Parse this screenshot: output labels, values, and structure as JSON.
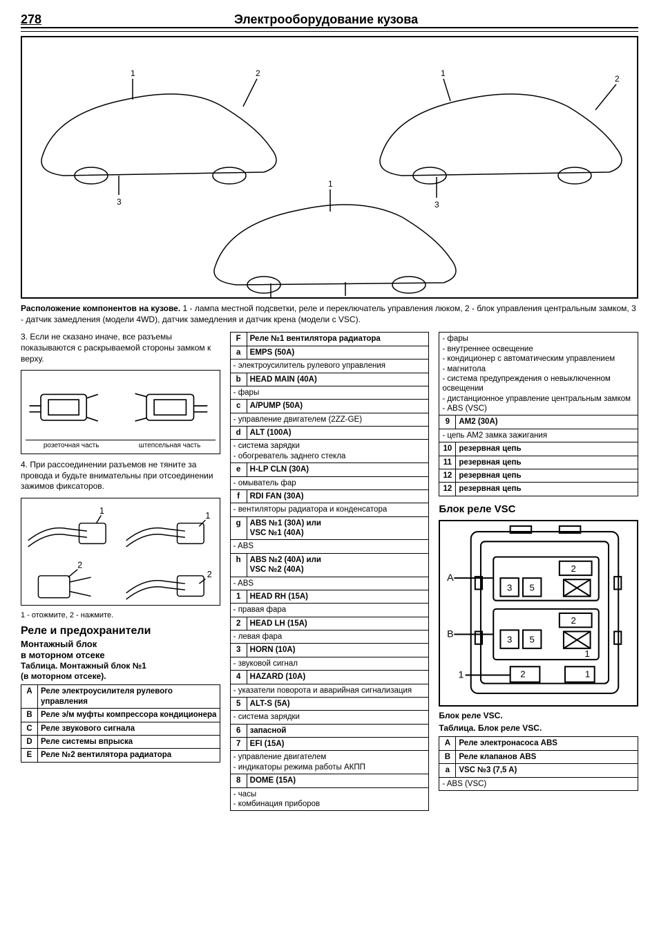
{
  "page_number": "278",
  "page_title": "Электрооборудование кузова",
  "figure_caption_lead": "Расположение компонентов на кузове.",
  "figure_caption_rest": "1 - лампа местной подсветки, реле и переключатель управления люком, 2 - блок управления центральным замком, 3 - датчик замедления (модели 4WD), датчик замедления и датчик крена (модели с VSC).",
  "col1": {
    "p3": "3. Если не сказано иначе, все разъемы показываются с раскрываемой стороны замком к верху.",
    "conn_left": "розеточная часть",
    "conn_right": "штепсельная часть",
    "p4": "4. При рассоединении разъемов не тяните за провода и будьте внимательны при отсоединении зажимов фиксаторов.",
    "press_note": "1 - отожмите, 2 - нажмите.",
    "h1": "Реле и предохранители",
    "h2a": "Монтажный блок",
    "h2b": "в моторном отсеке",
    "tbl_title_a": "Таблица. Монтажный блок №1",
    "tbl_title_b": "(в моторном отсеке).",
    "table1": [
      {
        "k": "A",
        "v": "Реле электроусилителя рулевого управления"
      },
      {
        "k": "B",
        "v": "Реле э/м муфты компрессора кондиционера"
      },
      {
        "k": "C",
        "v": "Реле звукового сигнала"
      },
      {
        "k": "D",
        "v": "Реле системы впрыска"
      },
      {
        "k": "E",
        "v": "Реле №2 вентилятора радиатора"
      }
    ]
  },
  "col2_rows": [
    {
      "type": "kv",
      "k": "F",
      "v": "Реле №1 вентилятора радиатора",
      "bold": true
    },
    {
      "type": "kv",
      "k": "a",
      "v": "EMPS (50A)",
      "bold": true
    },
    {
      "type": "full",
      "v": "- электроусилитель рулевого управления"
    },
    {
      "type": "kv",
      "k": "b",
      "v": "HEAD MAIN (40A)",
      "bold": true
    },
    {
      "type": "full",
      "v": "- фары"
    },
    {
      "type": "kv",
      "k": "c",
      "v": "A/PUMP (50A)",
      "bold": true
    },
    {
      "type": "full",
      "v": "- управление двигателем (2ZZ-GE)"
    },
    {
      "type": "kv",
      "k": "d",
      "v": "ALT (100A)",
      "bold": true
    },
    {
      "type": "full",
      "v": "- система зарядки\n- обогреватель заднего стекла"
    },
    {
      "type": "kv",
      "k": "e",
      "v": "H-LP CLN (30A)",
      "bold": true
    },
    {
      "type": "full",
      "v": "- омыватель фар"
    },
    {
      "type": "kv",
      "k": "f",
      "v": "RDI FAN (30A)",
      "bold": true
    },
    {
      "type": "full",
      "v": "- вентиляторы радиатора и конденсатора"
    },
    {
      "type": "kv",
      "k": "g",
      "v": "ABS №1      (30A) или\nVSC №1      (40A)",
      "bold": true
    },
    {
      "type": "full",
      "v": "- ABS"
    },
    {
      "type": "kv",
      "k": "h",
      "v": "ABS №2      (40A) или\nVSC №2      (40A)",
      "bold": true
    },
    {
      "type": "full",
      "v": "- ABS"
    },
    {
      "type": "kv",
      "k": "1",
      "v": "HEAD RH (15A)",
      "bold": true
    },
    {
      "type": "full",
      "v": "- правая фара"
    },
    {
      "type": "kv",
      "k": "2",
      "v": "HEAD LH (15A)",
      "bold": true
    },
    {
      "type": "full",
      "v": "- левая фара"
    },
    {
      "type": "kv",
      "k": "3",
      "v": "HORN (10A)",
      "bold": true
    },
    {
      "type": "full",
      "v": "- звуковой сигнал"
    },
    {
      "type": "kv",
      "k": "4",
      "v": "HAZARD (10A)",
      "bold": true
    },
    {
      "type": "full",
      "v": "- указатели поворота и аварийная сигнализация"
    },
    {
      "type": "kv",
      "k": "5",
      "v": "ALT-S (5A)",
      "bold": true
    },
    {
      "type": "full",
      "v": "- система зарядки"
    },
    {
      "type": "kv",
      "k": "6",
      "v": "запасной",
      "bold": true
    },
    {
      "type": "kv",
      "k": "7",
      "v": "EFI (15A)",
      "bold": true
    },
    {
      "type": "full",
      "v": "- управление двигателем\n- индикаторы режима работы АКПП"
    },
    {
      "type": "kv",
      "k": "8",
      "v": "DOME (15A)",
      "bold": true
    },
    {
      "type": "full",
      "v": "- часы\n- комбинация приборов"
    }
  ],
  "col3": {
    "top_rows": [
      {
        "type": "full",
        "v": "- фары\n- внутреннее освещение\n- кондиционер с автоматическим управлением\n- магнитола\n- система предупреждения о невыключенном освещении\n- дистанционное управление центральным замком\n- ABS (VSC)"
      },
      {
        "type": "kv",
        "k": "9",
        "v": "AM2 (30A)",
        "bold": true
      },
      {
        "type": "full",
        "v": "- цепь AM2 замка зажигания"
      },
      {
        "type": "kv",
        "k": "10",
        "v": "резервная цепь",
        "bold": true
      },
      {
        "type": "kv",
        "k": "11",
        "v": "резервная цепь",
        "bold": true
      },
      {
        "type": "kv",
        "k": "12",
        "v": "резервная цепь",
        "bold": true
      },
      {
        "type": "kv",
        "k": "12",
        "v": "резервная цепь",
        "bold": true
      }
    ],
    "vsc_heading": "Блок реле VSC",
    "vsc_caption": "Блок реле VSC.",
    "vsc_table_title": "Таблица. Блок реле VSC.",
    "vsc_rows": [
      {
        "type": "kv",
        "k": "A",
        "v": "Реле электронасоса ABS",
        "bold": true
      },
      {
        "type": "kv",
        "k": "B",
        "v": "Реле клапанов ABS",
        "bold": true
      },
      {
        "type": "kv",
        "k": "a",
        "v": "VSC №3 (7,5 A)",
        "bold": true
      },
      {
        "type": "full",
        "v": "- ABS (VSC)"
      }
    ],
    "diagram_labels": {
      "A": "A",
      "B": "B",
      "n1": "1",
      "n2": "2",
      "n3": "3",
      "n5": "5"
    }
  }
}
